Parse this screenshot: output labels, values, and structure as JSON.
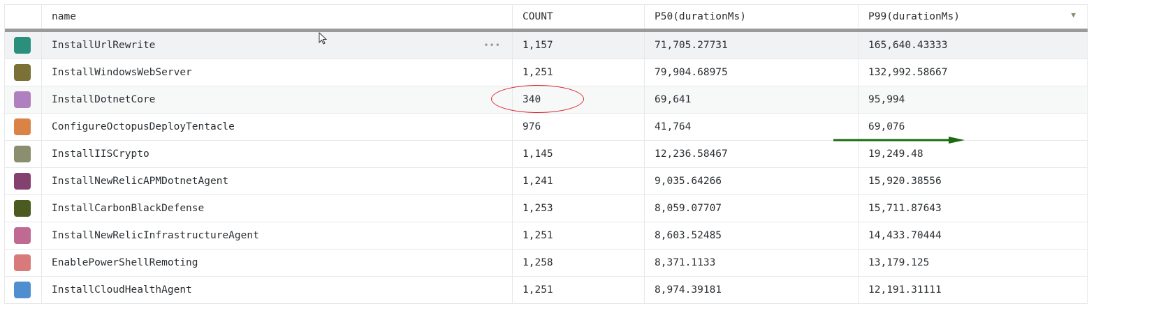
{
  "columns": [
    "",
    "name",
    "COUNT",
    "P50(durationMs)",
    "P99(durationMs)"
  ],
  "sort_icon": "triangle-down-icon",
  "rows": [
    {
      "color": "#2a8f7c",
      "name": "InstallUrlRewrite",
      "count": "1,157",
      "p50": "71,705.27731",
      "p99": "165,640.43333"
    },
    {
      "color": "#7b7035",
      "name": "InstallWindowsWebServer",
      "count": "1,251",
      "p50": "79,904.68975",
      "p99": "132,992.58667"
    },
    {
      "color": "#b07fbf",
      "name": "InstallDotnetCore",
      "count": "340",
      "p50": "69,641",
      "p99": "95,994"
    },
    {
      "color": "#db8346",
      "name": "ConfigureOctopusDeployTentacle",
      "count": "976",
      "p50": "41,764",
      "p99": "69,076"
    },
    {
      "color": "#8b8f6e",
      "name": "InstallIISCrypto",
      "count": "1,145",
      "p50": "12,236.58467",
      "p99": "19,249.48"
    },
    {
      "color": "#84406e",
      "name": "InstallNewRelicAPMDotnetAgent",
      "count": "1,241",
      "p50": "9,035.64266",
      "p99": "15,920.38556"
    },
    {
      "color": "#4b5a1e",
      "name": "InstallCarbonBlackDefense",
      "count": "1,253",
      "p50": "8,059.07707",
      "p99": "15,711.87643"
    },
    {
      "color": "#c06a93",
      "name": "InstallNewRelicInfrastructureAgent",
      "count": "1,251",
      "p50": "8,603.52485",
      "p99": "14,433.70444"
    },
    {
      "color": "#d87a7a",
      "name": "EnablePowerShellRemoting",
      "count": "1,258",
      "p50": "8,371.1133",
      "p99": "13,179.125"
    },
    {
      "color": "#4f8fcf",
      "name": "InstallCloudHealthAgent",
      "count": "1,251",
      "p50": "8,974.39181",
      "p99": "12,191.31111"
    }
  ],
  "annotation_colors": {
    "ellipse": "#d9252b",
    "arrow": "#1a6b12"
  }
}
